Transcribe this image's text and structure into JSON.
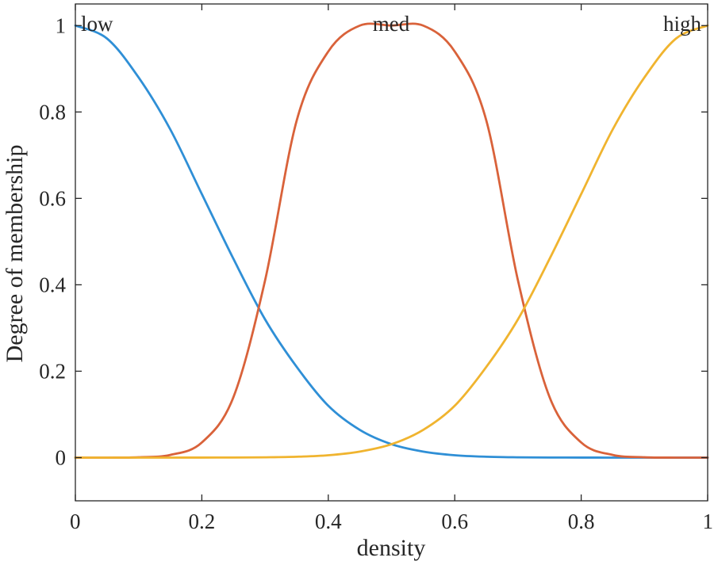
{
  "chart_data": {
    "type": "line",
    "title": "",
    "xlabel": "density",
    "ylabel": "Degree of membership",
    "xlim": [
      0,
      1
    ],
    "ylim": [
      -0.1,
      1.05
    ],
    "xticks": [
      0,
      0.2,
      0.4,
      0.6,
      0.8,
      1
    ],
    "xtick_labels": [
      "0",
      "0.2",
      "0.4",
      "0.6",
      "0.8",
      "1"
    ],
    "yticks": [
      0,
      0.2,
      0.4,
      0.6,
      0.8,
      1
    ],
    "ytick_labels": [
      "0",
      "0.2",
      "0.4",
      "0.6",
      "0.8",
      "1"
    ],
    "grid": false,
    "x": [
      0,
      0.05,
      0.1,
      0.15,
      0.2,
      0.25,
      0.3,
      0.35,
      0.4,
      0.45,
      0.5,
      0.55,
      0.6,
      0.65,
      0.7,
      0.75,
      0.8,
      0.85,
      0.9,
      0.95,
      1
    ],
    "series": [
      {
        "name": "low",
        "type": "gaussian",
        "color": "#2f8fd6",
        "values": [
          1.0,
          0.97,
          0.88,
          0.76,
          0.61,
          0.46,
          0.32,
          0.21,
          0.12,
          0.064,
          0.031,
          0.014,
          0.0055,
          0.002,
          0.0007,
          0.0002,
          0.0001,
          0.0,
          0.0,
          0.0,
          0.0
        ]
      },
      {
        "name": "med",
        "type": "gaussian",
        "color": "#d9623a",
        "values": [
          0.0,
          0.0,
          0.0008,
          0.0062,
          0.035,
          0.14,
          0.41,
          0.78,
          0.94,
          1.0,
          1.0,
          1.0,
          0.94,
          0.78,
          0.41,
          0.14,
          0.035,
          0.0062,
          0.0008,
          0.0,
          0.0
        ]
      },
      {
        "name": "high",
        "type": "gaussian",
        "color": "#f0b42f",
        "values": [
          0.0,
          0.0,
          0.0,
          0.0,
          0.0001,
          0.0002,
          0.0007,
          0.002,
          0.0055,
          0.014,
          0.031,
          0.064,
          0.12,
          0.21,
          0.32,
          0.46,
          0.61,
          0.76,
          0.88,
          0.97,
          1.0
        ]
      }
    ],
    "series_labels": [
      {
        "text": "low",
        "position": "top-left"
      },
      {
        "text": "med",
        "position": "top-center"
      },
      {
        "text": "high",
        "position": "top-right"
      }
    ]
  }
}
